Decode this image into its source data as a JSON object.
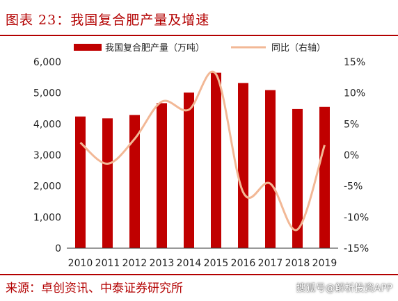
{
  "header": {
    "title": "图表 23：我国复合肥产量及增速"
  },
  "footer": {
    "source": "来源：卓创资讯、中泰证券研究所",
    "watermark": "搜狐号@解析投资APP"
  },
  "chart_data": {
    "type": "bar",
    "categories": [
      "2010",
      "2011",
      "2012",
      "2013",
      "2014",
      "2015",
      "2016",
      "2017",
      "2018",
      "2019"
    ],
    "series": [
      {
        "name": "我国复合肥产量（万吨）",
        "type": "bar",
        "axis": "left",
        "color": "#c00000",
        "values": [
          4240,
          4180,
          4290,
          4670,
          5010,
          5650,
          5320,
          5090,
          4480,
          4550
        ]
      },
      {
        "name": "同比（右轴）",
        "type": "line",
        "axis": "right",
        "color": "#f2b896",
        "values": [
          2.0,
          -1.4,
          2.6,
          8.6,
          7.3,
          13.0,
          -6.0,
          -4.6,
          -12.0,
          1.6
        ]
      }
    ],
    "y_left": {
      "range": [
        0,
        6000
      ],
      "ticks": [
        "0",
        "1,000",
        "2,000",
        "3,000",
        "4,000",
        "5,000",
        "6,000"
      ],
      "tick_values": [
        0,
        1000,
        2000,
        3000,
        4000,
        5000,
        6000
      ]
    },
    "y_right": {
      "range": [
        -15,
        15
      ],
      "ticks": [
        "-15%",
        "-10%",
        "-5%",
        "0%",
        "5%",
        "10%",
        "15%"
      ],
      "tick_values": [
        -15,
        -10,
        -5,
        0,
        5,
        10,
        15
      ]
    },
    "grid": false,
    "legend_position": "top"
  }
}
